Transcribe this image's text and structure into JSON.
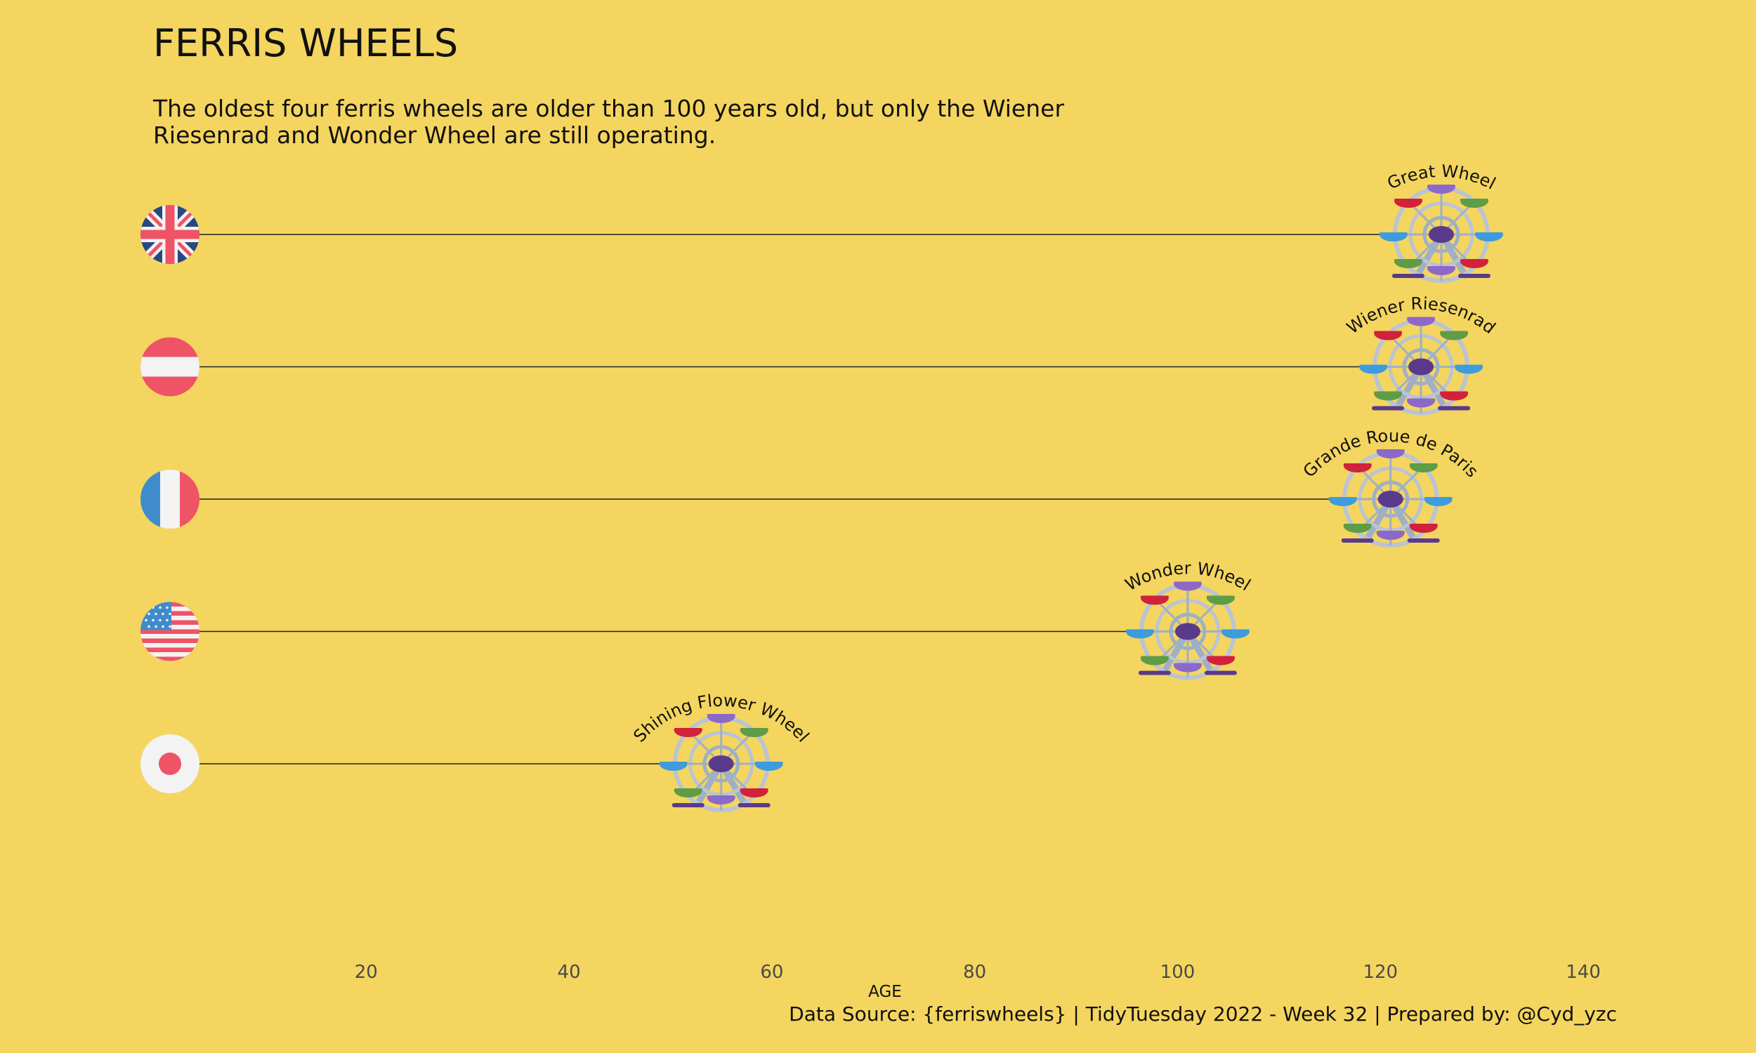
{
  "title": "FERRIS WHEELS",
  "subtitle_lines": [
    "The oldest four ferris wheels are older than 100 years old, but only the Wiener",
    "Riesenrad and Wonder Wheel are still operating."
  ],
  "caption": "Data Source: {ferriswheels} | TidyTuesday 2022 - Week 32 | Prepared by: @Cyd_yzc",
  "colors": {
    "background": "#f4d55f",
    "text": "#111111",
    "tick": "#4a4a4a",
    "segment": "#222222",
    "flag_red": "#ef5366",
    "flag_blue": "#3f8ccc",
    "flag_navy": "#27497e",
    "flag_white": "#f3f3f3",
    "wheel_frame": "#9fb0c6",
    "wheel_hub": "#5a3a8a",
    "cabin_red": "#d1213b",
    "cabin_green": "#5e9c45",
    "cabin_blue": "#3e9bde",
    "cabin_purple": "#8c69c9"
  },
  "chart_data": {
    "type": "lollipop",
    "xlabel": "AGE",
    "xlim": [
      0,
      145
    ],
    "xticks": [
      20,
      40,
      60,
      80,
      100,
      120,
      140
    ],
    "grid": false,
    "series": [
      {
        "name": "Great Wheel",
        "country": "UK",
        "flag_icon": "uk-flag-icon",
        "value": 126
      },
      {
        "name": "Wiener Riesenrad",
        "country": "Austria",
        "flag_icon": "austria-flag-icon",
        "value": 124
      },
      {
        "name": "Grande Roue de Paris",
        "country": "France",
        "flag_icon": "france-flag-icon",
        "value": 121
      },
      {
        "name": "Wonder Wheel",
        "country": "USA",
        "flag_icon": "usa-flag-icon",
        "value": 101
      },
      {
        "name": "Shining Flower Wheel",
        "country": "Japan",
        "flag_icon": "japan-flag-icon",
        "value": 55
      }
    ]
  }
}
